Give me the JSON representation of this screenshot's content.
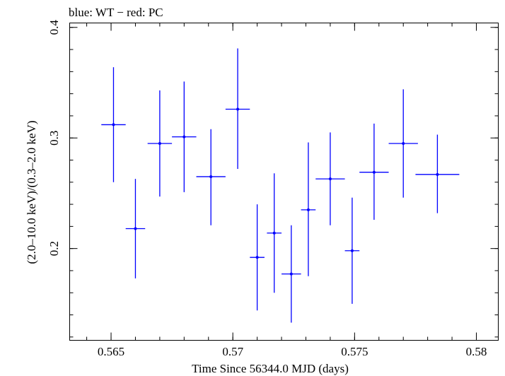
{
  "chart_data": {
    "type": "scatter",
    "title": "blue: WT − red: PC",
    "xlabel": "Time Since 56344.0 MJD (days)",
    "ylabel": "(2.0–10.0 keV)/(0.3–2.0 keV)",
    "xlim": [
      0.5633,
      0.5809
    ],
    "ylim": [
      0.117,
      0.404
    ],
    "xticks": [
      {
        "value": 0.565,
        "label": "0.565"
      },
      {
        "value": 0.57,
        "label": "0.57"
      },
      {
        "value": 0.575,
        "label": "0.575"
      },
      {
        "value": 0.58,
        "label": "0.58"
      }
    ],
    "yticks": [
      {
        "value": 0.2,
        "label": "0.2"
      },
      {
        "value": 0.3,
        "label": "0.3"
      },
      {
        "value": 0.4,
        "label": "0.4"
      }
    ],
    "xminor_step": 0.001,
    "yminor_step": 0.02,
    "grid": false,
    "series": [
      {
        "name": "WT",
        "color": "#0000ff",
        "points": [
          {
            "x": 0.5651,
            "xerr": 0.0005,
            "y": 0.312,
            "ylow": 0.26,
            "yhigh": 0.364
          },
          {
            "x": 0.566,
            "xerr": 0.0004,
            "y": 0.218,
            "ylow": 0.173,
            "yhigh": 0.263
          },
          {
            "x": 0.567,
            "xerr": 0.0005,
            "y": 0.295,
            "ylow": 0.247,
            "yhigh": 0.343
          },
          {
            "x": 0.568,
            "xerr": 0.0005,
            "y": 0.301,
            "ylow": 0.251,
            "yhigh": 0.351
          },
          {
            "x": 0.5691,
            "xerr": 0.0006,
            "y": 0.265,
            "ylow": 0.221,
            "yhigh": 0.308
          },
          {
            "x": 0.5702,
            "xerr": 0.0005,
            "y": 0.326,
            "ylow": 0.272,
            "yhigh": 0.381
          },
          {
            "x": 0.571,
            "xerr": 0.0003,
            "y": 0.192,
            "ylow": 0.144,
            "yhigh": 0.24
          },
          {
            "x": 0.5717,
            "xerr": 0.0003,
            "y": 0.214,
            "ylow": 0.16,
            "yhigh": 0.268
          },
          {
            "x": 0.5724,
            "xerr": 0.0004,
            "y": 0.177,
            "ylow": 0.133,
            "yhigh": 0.221
          },
          {
            "x": 0.5731,
            "xerr": 0.0003,
            "y": 0.235,
            "ylow": 0.175,
            "yhigh": 0.296
          },
          {
            "x": 0.574,
            "xerr": 0.0006,
            "y": 0.263,
            "ylow": 0.221,
            "yhigh": 0.305
          },
          {
            "x": 0.5749,
            "xerr": 0.0003,
            "y": 0.198,
            "ylow": 0.15,
            "yhigh": 0.246
          },
          {
            "x": 0.5758,
            "xerr": 0.0006,
            "y": 0.269,
            "ylow": 0.226,
            "yhigh": 0.313
          },
          {
            "x": 0.577,
            "xerr": 0.0006,
            "y": 0.295,
            "ylow": 0.246,
            "yhigh": 0.344
          },
          {
            "x": 0.5784,
            "xerr": 0.0009,
            "y": 0.267,
            "ylow": 0.232,
            "yhigh": 0.303
          }
        ]
      }
    ]
  }
}
